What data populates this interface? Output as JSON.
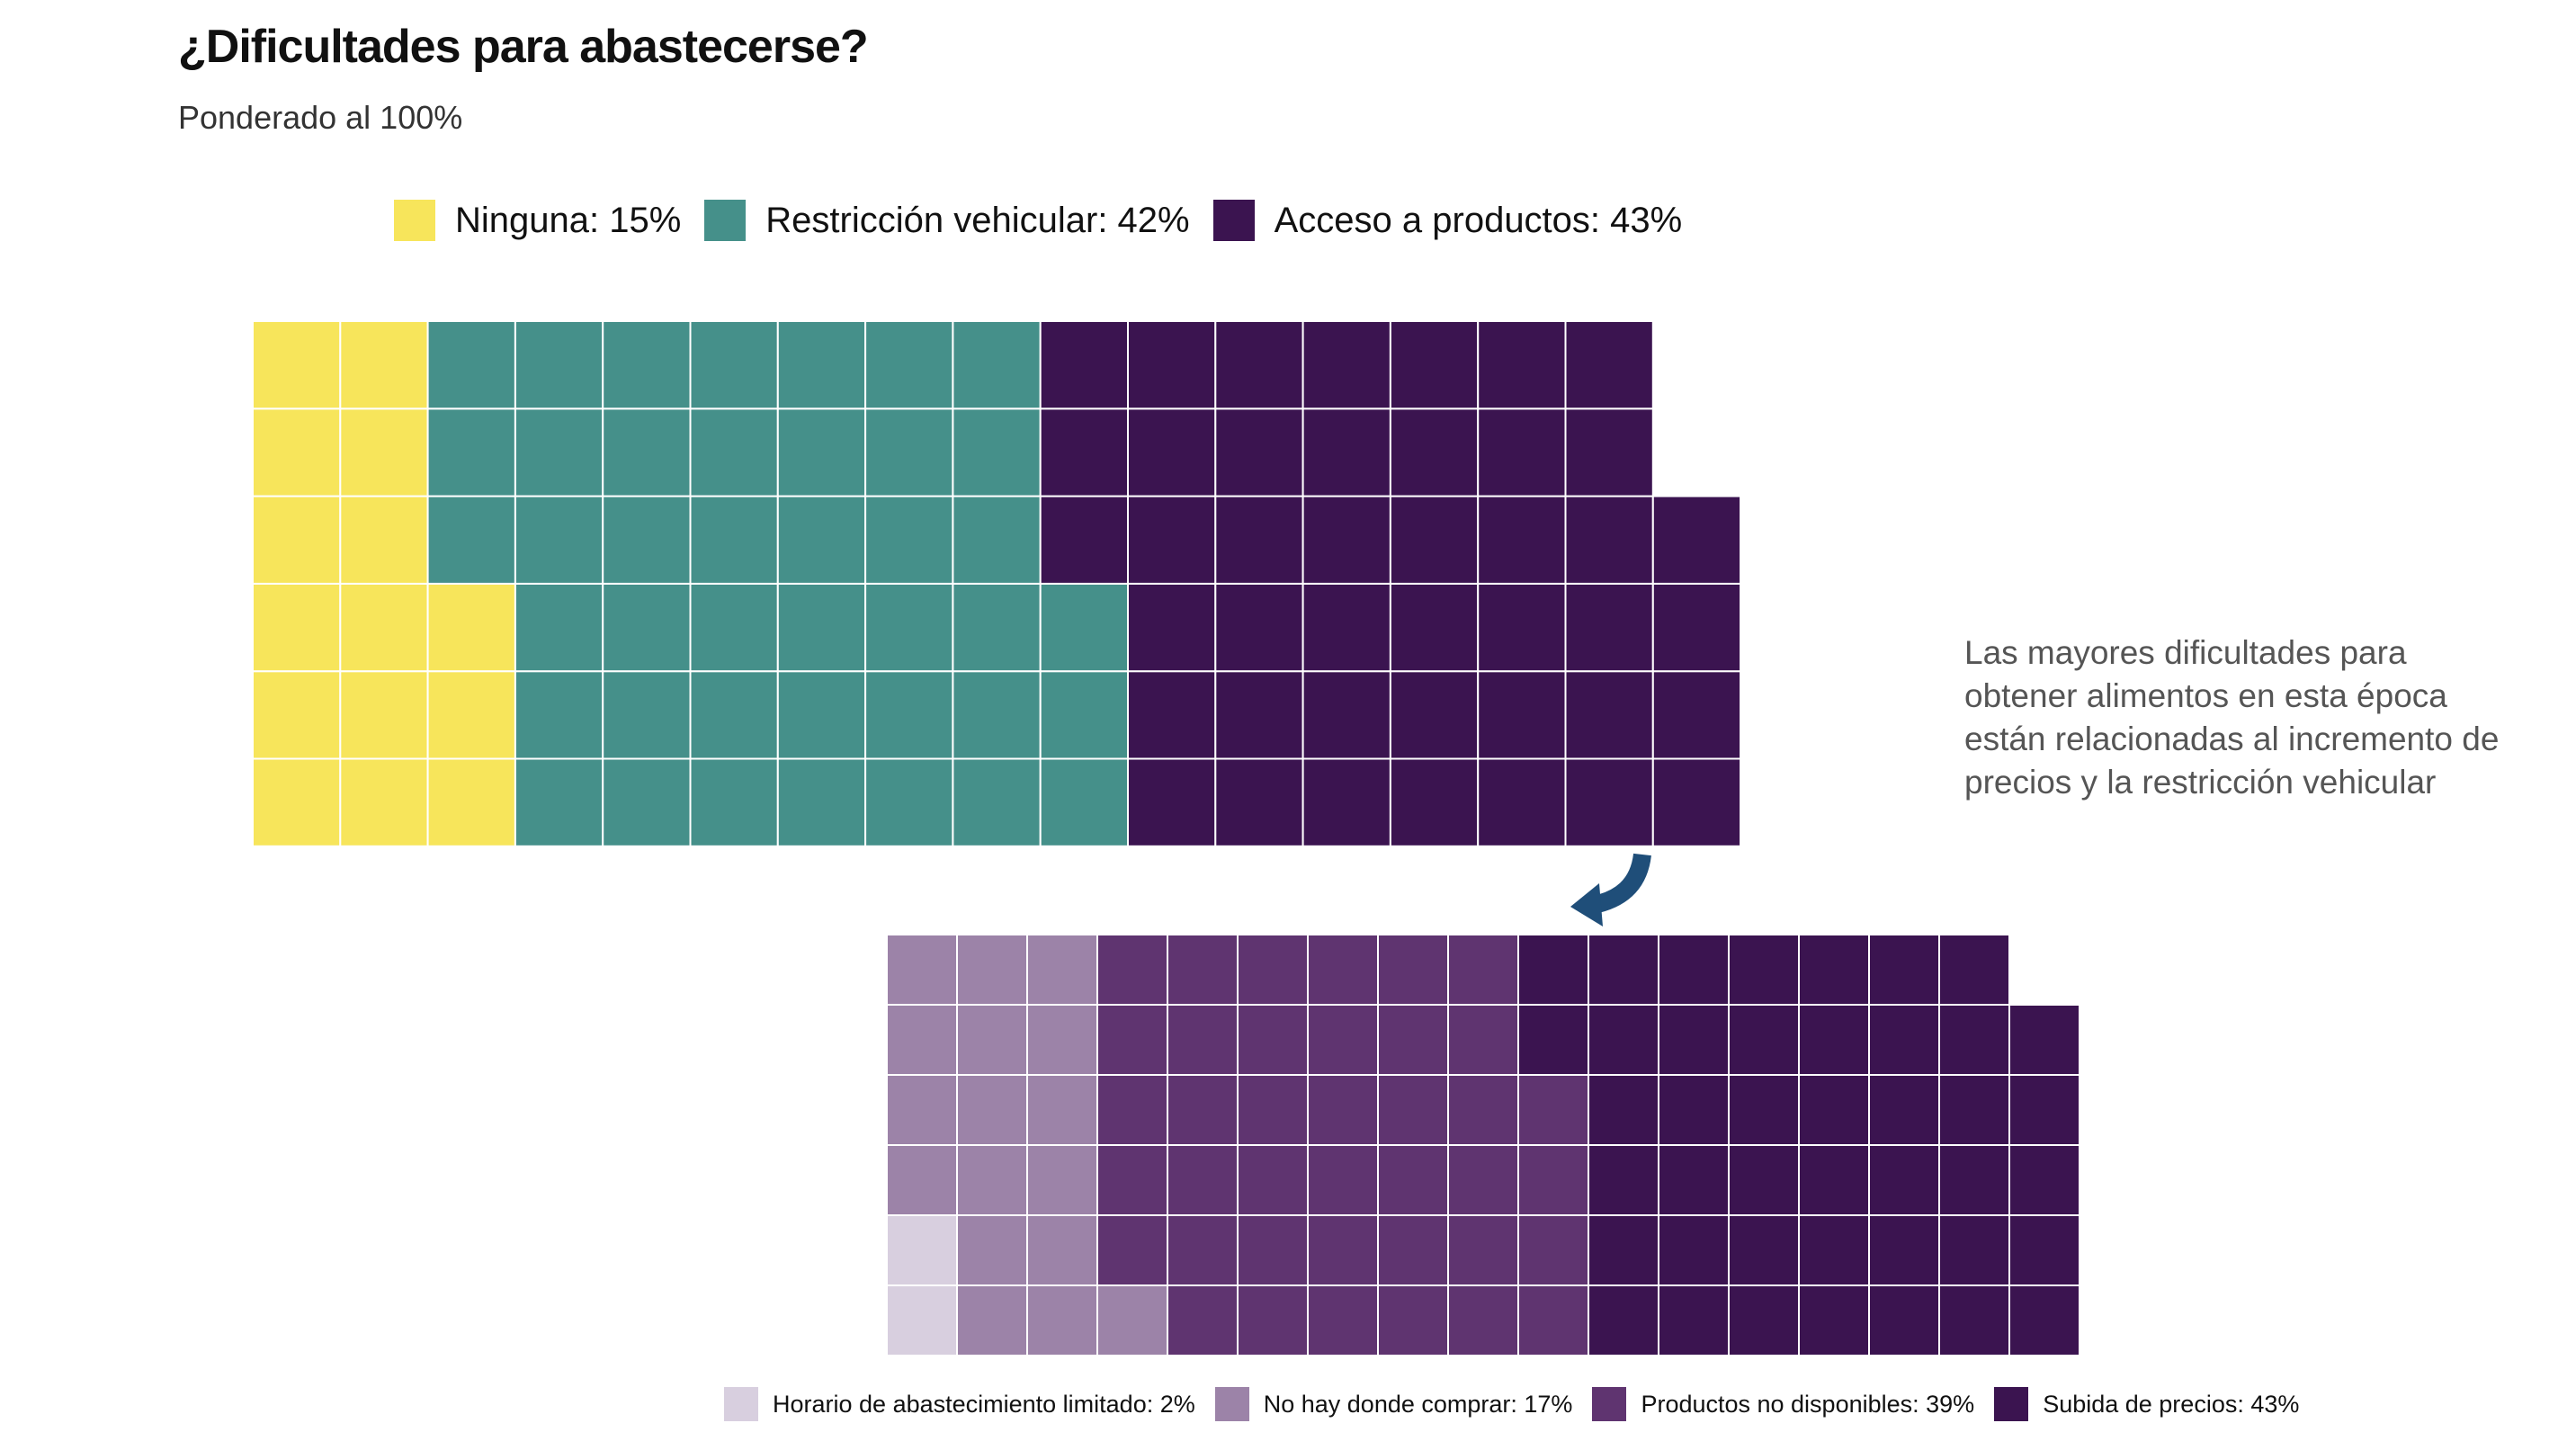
{
  "header": {
    "title": "¿Dificultades para abastecerse?",
    "subtitle": "Ponderado al 100%"
  },
  "annotation": {
    "text": "Las mayores dificultades para obtener alimentos en esta época están relacionadas al incremento de precios y la restricción vehicular",
    "arrow_color": "#1f4e79"
  },
  "chart_data": [
    {
      "type": "waffle",
      "rows": 6,
      "legend_placement": "top",
      "grid_line_color": "#ffffff",
      "series": [
        {
          "label": "Ninguna: 15%",
          "value": 15,
          "color": "#f7e55b"
        },
        {
          "label": "Restricción vehicular: 42%",
          "value": 42,
          "color": "#45908a"
        },
        {
          "label": "Acceso a productos: 43%",
          "value": 43,
          "color": "#3b1450"
        }
      ]
    },
    {
      "type": "waffle",
      "rows": 6,
      "legend_placement": "bottom",
      "grid_line_color": "#ffffff",
      "series": [
        {
          "label": "Horario de abastecimiento limitado: 2%",
          "value": 2,
          "color": "#d8cfdf"
        },
        {
          "label": "No hay donde comprar: 17%",
          "value": 17,
          "color": "#9c83a8"
        },
        {
          "label": "Productos no disponibles: 39%",
          "value": 39,
          "color": "#5f3470"
        },
        {
          "label": "Subida de precios: 43%",
          "value": 43,
          "color": "#3b1450"
        }
      ]
    }
  ]
}
